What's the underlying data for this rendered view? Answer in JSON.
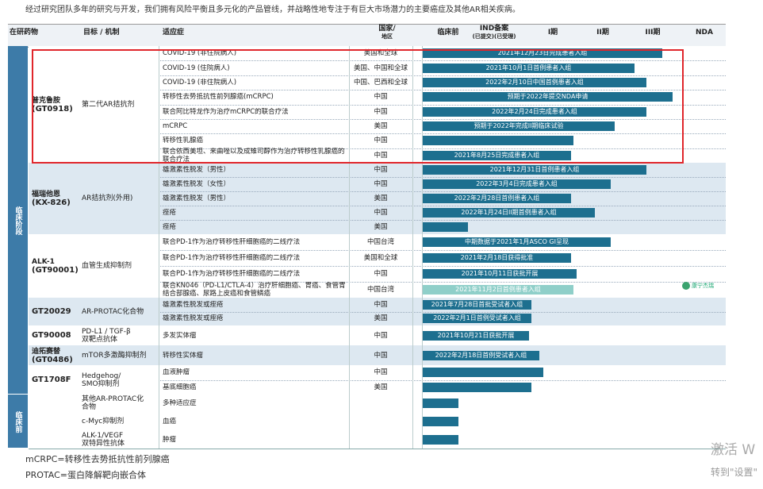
{
  "intro": "经过研究团队多年的研究与开发，我们拥有风险平衡且多元化的产品管线，并战略性地专注于有巨大市场潜力的主要癌症及其他AR相关疾病。",
  "header": [
    [
      "在研药物"
    ],
    [
      "目标 / 机制"
    ],
    [
      "适应症"
    ],
    [
      "国家/",
      "地区"
    ],
    [
      "临床前"
    ],
    [
      "IND备案",
      "(已提交)(已受理)"
    ],
    [
      "I期"
    ],
    [
      "II期"
    ],
    [
      "III期"
    ],
    [
      "NDA"
    ]
  ],
  "phase_groups": [
    "临床阶段",
    "临床前"
  ],
  "drugs": [
    {
      "name": [
        "普克鲁胺",
        "(GT0918)"
      ],
      "mechanism": [
        "第二代AR拮抗剂"
      ],
      "rows": [
        {
          "indication": "COVID-19 (非住院病人)",
          "region": "美国和全球",
          "status": "2021年12月23日完成患者入组"
        },
        {
          "indication": "COVID-19 (住院病人)",
          "region": "美国、中国和全球",
          "status": "2021年10月1日首例患者入组"
        },
        {
          "indication": "COVID-19 (非住院病人)",
          "region": "中国、巴西和全球",
          "status": "2022年2月10日中国首例患者入组"
        },
        {
          "indication": "转移性去势抵抗性前列腺癌(mCRPC)",
          "region": "中国",
          "status": "预期于2022年提交NDA申请"
        },
        {
          "indication": "联合阿比特龙作为治疗mCRPC的联合疗法",
          "region": "中国",
          "status": "2022年2月24日完成患者入组"
        },
        {
          "indication": "mCRPC",
          "region": "美国",
          "status": "预期于2022年完成II期临床试验"
        },
        {
          "indication": "转移性乳腺癌",
          "region": "中国"
        },
        {
          "indication": "联合依西美坦、来曲唑以及成雉司醇作为治疗转移性乳腺癌的联合疗法",
          "region": "中国",
          "status": "2021年8月25日完成患者入组"
        }
      ]
    },
    {
      "name": [
        "福瑞他恩",
        "(KX-826)"
      ],
      "mechanism": [
        "AR拮抗剂(外用)"
      ],
      "rows": [
        {
          "indication": "雄激素性脱发（男性）",
          "region": "中国",
          "status": "2021年12月31日首例患者入组"
        },
        {
          "indication": "雄激素性脱发（女性）",
          "region": "中国",
          "status": "2022年3月4日完成患者入组"
        },
        {
          "indication": "雄激素性脱发（男性）",
          "region": "美国",
          "status": "2022年2月28日首例患者入组"
        },
        {
          "indication": "痤疮",
          "region": "中国",
          "status": "2022年1月24日II期首例患者入组"
        },
        {
          "indication": "痤疮",
          "region": "美国"
        }
      ]
    },
    {
      "name": [
        "ALK-1",
        "(GT90001)"
      ],
      "mechanism": [
        "血管生成抑制剂"
      ],
      "rows": [
        {
          "indication": "联合PD-1作为治疗转移性肝细胞癌的二线疗法",
          "region": "中国台湾",
          "status": "中期数据于2021年1月ASCO GI呈现"
        },
        {
          "indication": "联合PD-1作为治疗转移性肝细胞癌的二线疗法",
          "region": "美国和全球",
          "status": "2021年2月18日获得批准"
        },
        {
          "indication": "联合PD-1作为治疗转移性肝细胞癌的二线疗法",
          "region": "中国",
          "status": "2021年10月11日获批开展"
        },
        {
          "indication": "联合KN046（PD-L1/CTLA-4）治疗肝细胞癌、胃癌、食管胃结合部腺癌、尿路上皮癌和食管鳞癌",
          "region": "中国台湾",
          "status": "2021年11月2日首例患者入组"
        }
      ]
    },
    {
      "name": [
        "GT20029"
      ],
      "mechanism": [
        "AR-PROTAC化合物"
      ],
      "rows": [
        {
          "indication": "雄激素性脱发或痤疮",
          "region": "中国",
          "status": "2021年7月28日首批受试者入组"
        },
        {
          "indication": "雄激素性脱发或痤疮",
          "region": "美国",
          "status": "2022年2月1日首例受试者入组"
        }
      ]
    },
    {
      "name": [
        "GT90008"
      ],
      "mechanism": [
        "PD-L1 / TGF-β",
        "双靶点抗体"
      ],
      "rows": [
        {
          "indication": "多发实体瘤",
          "region": "中国",
          "status": "2021年10月21日获批开展"
        }
      ]
    },
    {
      "name": [
        "迪拓赛替",
        "(GT0486)"
      ],
      "mechanism": [
        "mTOR多激酶抑制剂"
      ],
      "rows": [
        {
          "indication": "转移性实体瘤",
          "region": "中国",
          "status": "2022年2月18日首例受试者入组"
        }
      ]
    },
    {
      "name": [
        "GT1708F"
      ],
      "mechanism": [
        "Hedgehog/",
        "SMO抑制剂"
      ],
      "rows": [
        {
          "indication": "血液肿瘤",
          "region": "中国"
        },
        {
          "indication": "基底细胞癌",
          "region": "美国"
        }
      ]
    },
    {
      "mechanism": [
        "其他AR-PROTAC化",
        "合物"
      ],
      "rows": [
        {
          "indication": "多种适应症"
        }
      ]
    },
    {
      "mechanism": [
        "c-Myc抑制剂"
      ],
      "rows": [
        {
          "indication": "血癌"
        }
      ]
    },
    {
      "mechanism": [
        "ALK-1/VEGF",
        "双特异性抗体"
      ],
      "rows": [
        {
          "indication": "肿瘤"
        }
      ]
    }
  ],
  "partner_logo": "康宁杰瑞",
  "notes": [
    "mCRPC=转移性去势抵抗性前列腺癌",
    "PROTAC=蛋白降解靶向嵌合体"
  ],
  "watermark": [
    "激活 W",
    "转到\"设置\""
  ]
}
